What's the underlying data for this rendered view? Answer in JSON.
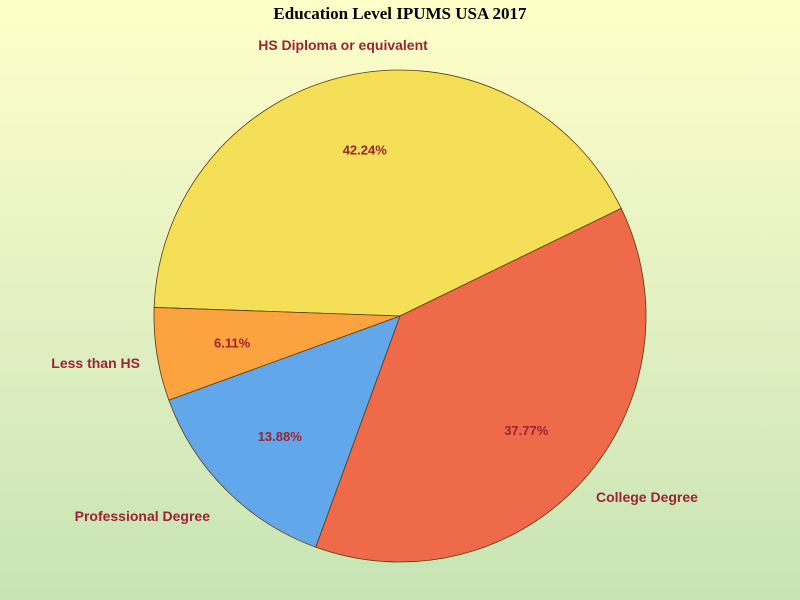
{
  "chart_data": {
    "type": "pie",
    "title": "Education Level IPUMS USA 2017",
    "categories": [
      "HS Diploma or equivalent",
      "College Degree",
      "Professional Degree",
      "Less than HS"
    ],
    "values": [
      42.24,
      37.77,
      13.88,
      6.11
    ],
    "value_labels": [
      "42.24%",
      "37.77%",
      "13.88%",
      "6.11%"
    ],
    "colors": [
      "#f5df57",
      "#ef6a49",
      "#62a7ea",
      "#fba33e"
    ],
    "label_color": "#9b2335",
    "start_angle_deg": 182,
    "direction": "clockwise"
  }
}
